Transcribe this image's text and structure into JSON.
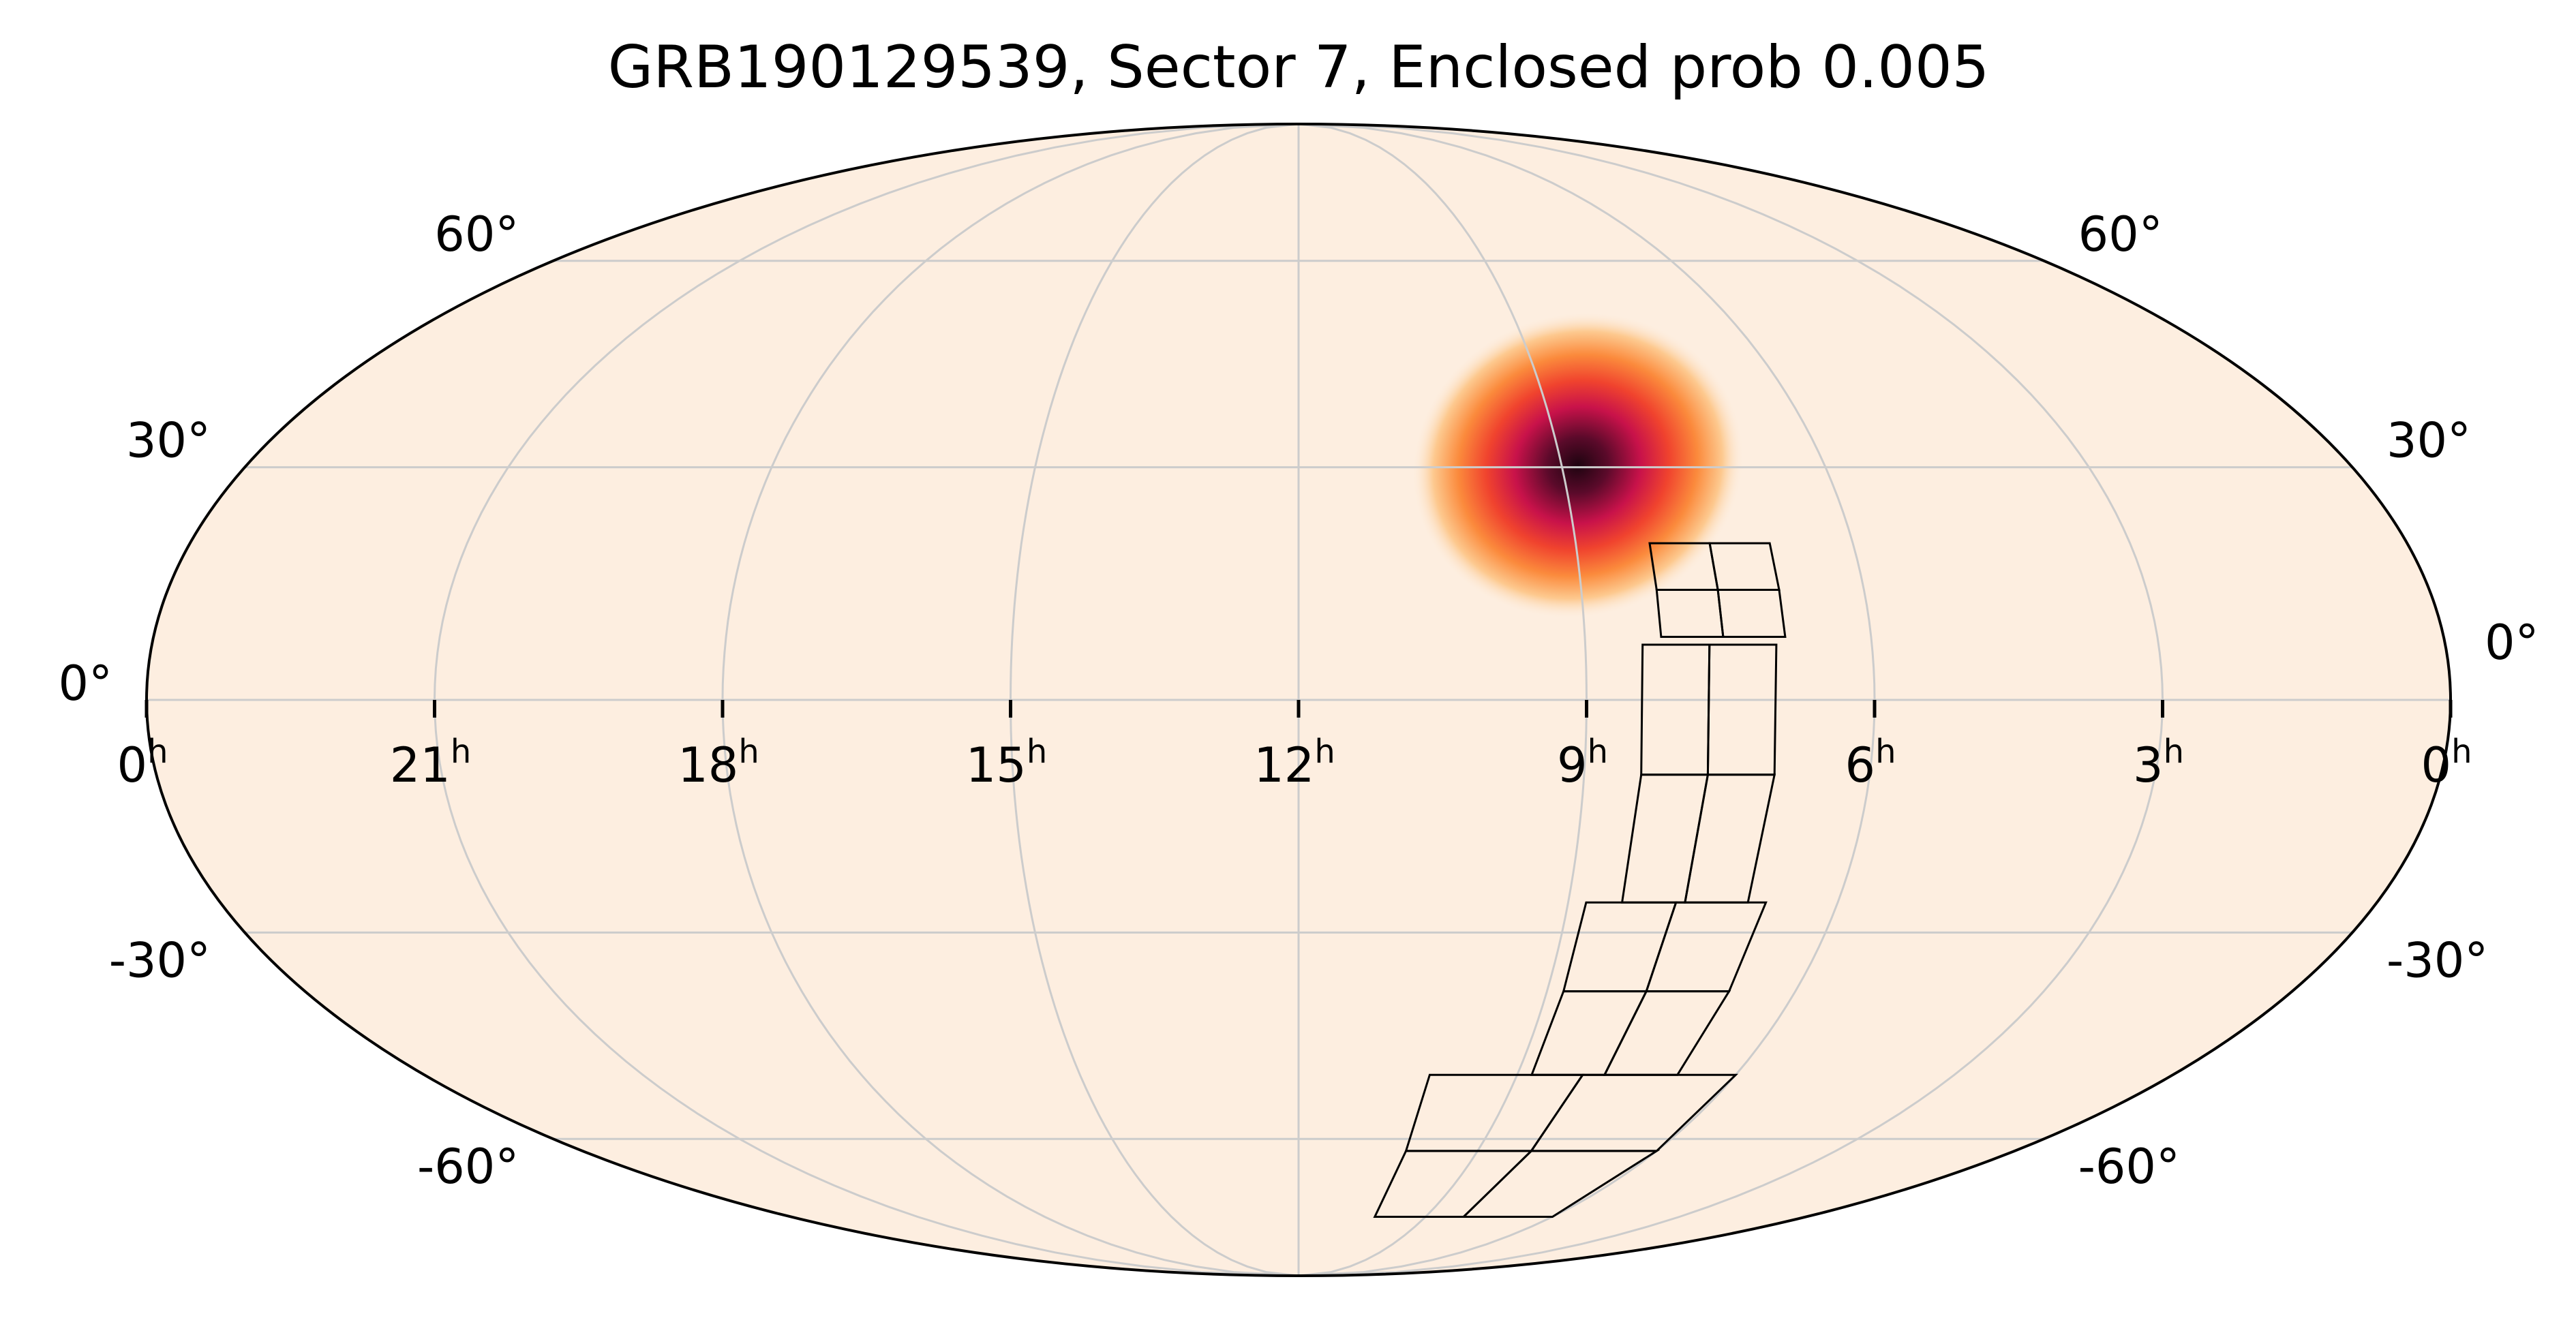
{
  "chart_data": {
    "type": "heatmap",
    "projection": "mollweide",
    "title": "GRB190129539, Sector 7, Enclosed prob 0.005",
    "xlabel": "",
    "ylabel": "",
    "grid": true,
    "colors": {
      "background": "#fdeee0",
      "grid": "#cccccc",
      "outline": "#000000",
      "probability_low": "#fdeee0",
      "probability_mid": "#f04a2e",
      "probability_high": "#2a0614"
    },
    "ra_ticks": [
      {
        "hours": 24,
        "label": "0",
        "unit": "h"
      },
      {
        "hours": 21,
        "label": "21",
        "unit": "h"
      },
      {
        "hours": 18,
        "label": "18",
        "unit": "h"
      },
      {
        "hours": 15,
        "label": "15",
        "unit": "h"
      },
      {
        "hours": 12,
        "label": "12",
        "unit": "h"
      },
      {
        "hours": 9,
        "label": "9",
        "unit": "h"
      },
      {
        "hours": 6,
        "label": "6",
        "unit": "h"
      },
      {
        "hours": 3,
        "label": "3",
        "unit": "h"
      },
      {
        "hours": 0,
        "label": "0",
        "unit": "h"
      }
    ],
    "dec_ticks": [
      {
        "deg": 60,
        "label": "60°"
      },
      {
        "deg": 30,
        "label": "30°"
      },
      {
        "deg": 0,
        "label": "0°"
      },
      {
        "deg": -30,
        "label": "-30°"
      },
      {
        "deg": -60,
        "label": "-60°"
      }
    ],
    "probability_peak": {
      "ra_hours": 8.8,
      "dec_deg": 31,
      "sigma_ra_hours": 0.6,
      "sigma_dec_deg": 8
    },
    "footprint_cameras": [
      {
        "camera": 1,
        "ra_hours": [
          8.2,
          6.9
        ],
        "dec_deg": [
          20,
          8
        ]
      },
      {
        "camera": 2,
        "ra_hours": [
          8.4,
          7.0
        ],
        "dec_deg": [
          7,
          -26
        ]
      },
      {
        "camera": 3,
        "ra_hours": [
          8.8,
          6.8
        ],
        "dec_deg": [
          -26,
          -50
        ]
      },
      {
        "camera": 4,
        "ra_hours": [
          10.2,
          6.0
        ],
        "dec_deg": [
          -50,
          -74
        ]
      }
    ]
  }
}
